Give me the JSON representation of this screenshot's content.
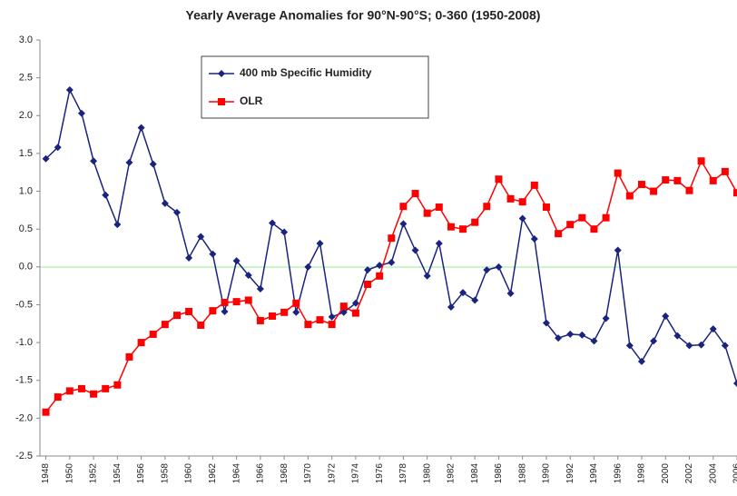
{
  "chart_data": {
    "type": "line",
    "title": "Yearly Average Anomalies for 90°N-90°S; 0-360 (1950-2008)",
    "x": [
      1948,
      1949,
      1950,
      1951,
      1952,
      1953,
      1954,
      1955,
      1956,
      1957,
      1958,
      1959,
      1960,
      1961,
      1962,
      1963,
      1964,
      1965,
      1966,
      1967,
      1968,
      1969,
      1970,
      1971,
      1972,
      1973,
      1974,
      1975,
      1976,
      1977,
      1978,
      1979,
      1980,
      1981,
      1982,
      1983,
      1984,
      1985,
      1986,
      1987,
      1988,
      1989,
      1990,
      1991,
      1992,
      1993,
      1994,
      1995,
      1996,
      1997,
      1998,
      1999,
      2000,
      2001,
      2002,
      2003,
      2004,
      2005,
      2006
    ],
    "series": [
      {
        "name": "400 mb Specific Humidity",
        "color": "#1a237e",
        "marker": "diamond",
        "values": [
          1.43,
          1.58,
          2.34,
          2.03,
          1.4,
          0.95,
          0.56,
          1.38,
          1.84,
          1.36,
          0.84,
          0.72,
          0.12,
          0.4,
          0.17,
          -0.59,
          0.08,
          -0.11,
          -0.29,
          0.58,
          0.46,
          -0.6,
          0.0,
          0.31,
          -0.66,
          -0.6,
          -0.48,
          -0.04,
          0.02,
          0.06,
          0.57,
          0.22,
          -0.12,
          0.31,
          -0.53,
          -0.34,
          -0.44,
          -0.04,
          0.0,
          -0.35,
          0.64,
          0.37,
          -0.74,
          -0.94,
          -0.89,
          -0.9,
          -0.98,
          -0.68,
          0.22,
          -1.04,
          -1.25,
          -0.98,
          -0.65,
          -0.91,
          -1.04,
          -1.03,
          -0.82,
          -1.04,
          -1.54
        ]
      },
      {
        "name": "OLR",
        "color": "#ff0000",
        "marker": "square",
        "values": [
          -1.92,
          -1.72,
          -1.64,
          -1.61,
          -1.68,
          -1.61,
          -1.56,
          -1.19,
          -1.0,
          -0.89,
          -0.76,
          -0.64,
          -0.59,
          -0.77,
          -0.58,
          -0.47,
          -0.46,
          -0.44,
          -0.71,
          -0.65,
          -0.6,
          -0.48,
          -0.76,
          -0.7,
          -0.76,
          -0.52,
          -0.61,
          -0.23,
          -0.12,
          0.38,
          0.8,
          0.97,
          0.71,
          0.79,
          0.53,
          0.5,
          0.59,
          0.8,
          1.16,
          0.9,
          0.86,
          1.08,
          0.79,
          0.44,
          0.56,
          0.65,
          0.5,
          0.65,
          1.24,
          0.94,
          1.09,
          1.0,
          1.15,
          1.14,
          1.01,
          1.4,
          1.14,
          1.26,
          0.98
        ]
      }
    ],
    "xlim": [
      1947.5,
      2006
    ],
    "xticks": [
      1948,
      1950,
      1952,
      1954,
      1956,
      1958,
      1960,
      1962,
      1964,
      1966,
      1968,
      1970,
      1972,
      1974,
      1976,
      1978,
      1980,
      1982,
      1984,
      1986,
      1988,
      1990,
      1992,
      1994,
      1996,
      1998,
      2000,
      2002,
      2004,
      2006
    ],
    "ylim": [
      -2.5,
      3.0
    ],
    "yticks": [
      {
        "value": 3,
        "label": "3.0"
      },
      2.5,
      {
        "value": 2,
        "label": "2.0"
      },
      1.5,
      {
        "value": 1,
        "label": "1.0"
      },
      0.5,
      {
        "value": 0,
        "label": "0.0"
      },
      -0.5,
      {
        "value": -1,
        "label": "-1.0"
      },
      -1.5,
      {
        "value": -2,
        "label": "-2.0"
      },
      -2.5
    ],
    "legend": "upper-left"
  }
}
